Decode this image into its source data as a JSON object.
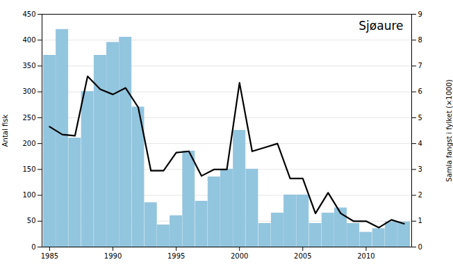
{
  "chart_data": {
    "type": "bar",
    "title": "Sjøaure",
    "x": [
      1985,
      1986,
      1987,
      1988,
      1989,
      1990,
      1991,
      1992,
      1993,
      1994,
      1995,
      1996,
      1997,
      1998,
      1999,
      2000,
      2001,
      2002,
      2003,
      2004,
      2005,
      2006,
      2007,
      2008,
      2009,
      2010,
      2011,
      2012,
      2013
    ],
    "series": [
      {
        "type": "bar",
        "color": "#92C5DE",
        "values": [
          370,
          420,
          210,
          300,
          370,
          395,
          405,
          270,
          85,
          42,
          60,
          185,
          88,
          135,
          150,
          225,
          150,
          45,
          65,
          100,
          100,
          45,
          65,
          75,
          45,
          28,
          35,
          48,
          48
        ]
      },
      {
        "type": "line",
        "color": "#000000",
        "axis": "y2",
        "values": [
          4.65,
          4.35,
          4.3,
          6.6,
          6.1,
          5.9,
          6.15,
          5.4,
          2.95,
          2.95,
          3.65,
          3.7,
          2.75,
          3.0,
          3.0,
          6.35,
          3.7,
          3.85,
          4.0,
          2.65,
          2.65,
          1.3,
          2.1,
          1.3,
          1.0,
          1.0,
          0.75,
          1.05,
          0.9
        ]
      }
    ],
    "ylabel": "Antal fisk",
    "y2label": "Samla fangst i fylket (×1000)",
    "xlim": [
      1984.4,
      2013.6
    ],
    "xticks": [
      1985,
      1990,
      1995,
      2000,
      2005,
      2010
    ],
    "ylim": [
      0,
      450
    ],
    "yticks": [
      0,
      50,
      100,
      150,
      200,
      250,
      300,
      350,
      400,
      450
    ],
    "y2lim": [
      0,
      9
    ],
    "y2ticks": [
      0,
      1,
      2,
      3,
      4,
      5,
      6,
      7,
      8,
      9
    ],
    "grid": true
  }
}
